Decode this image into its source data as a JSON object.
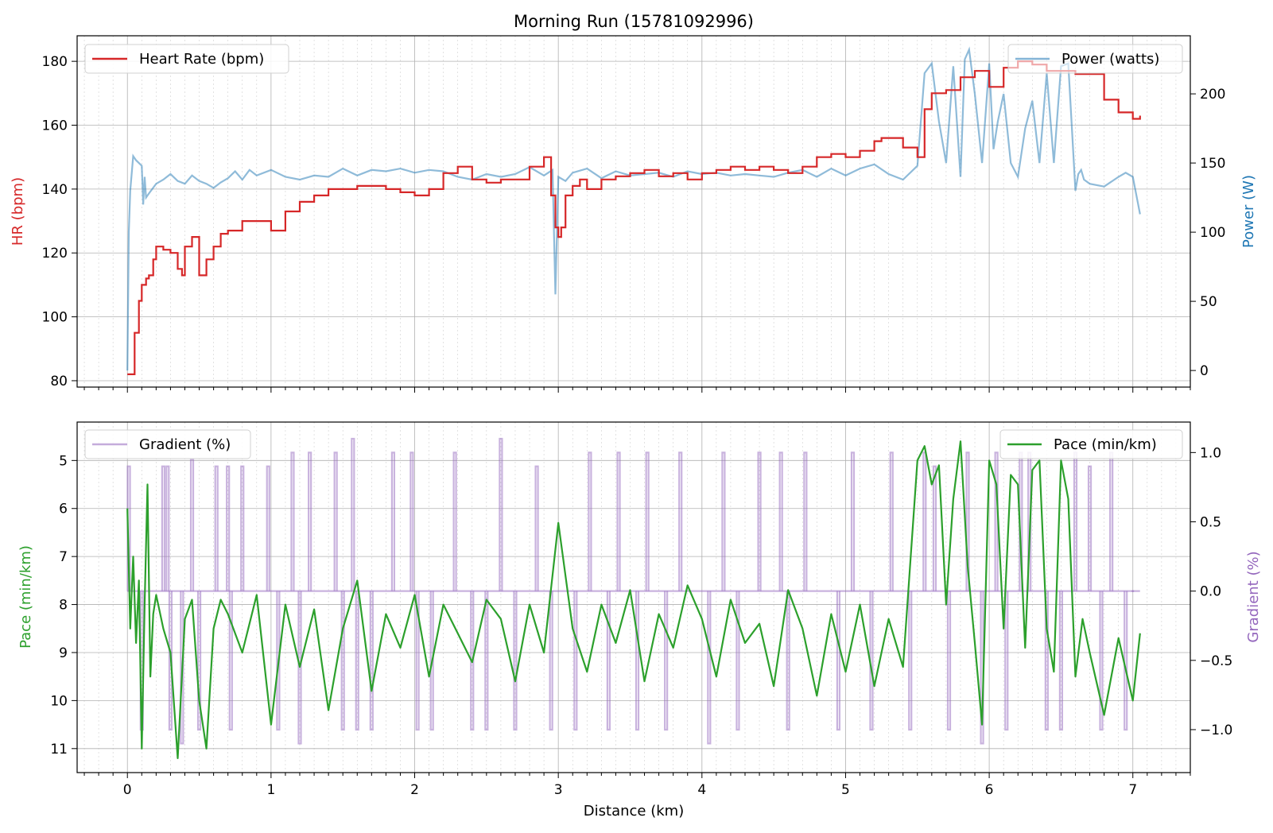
{
  "title": "Morning Run (15781092996)",
  "colors": {
    "hr": "#d62728",
    "power": "#1f77b4",
    "pace": "#2ca02c",
    "gradient": "#9467bd",
    "grid": "#b0b0b0"
  },
  "chart_data": [
    {
      "type": "line",
      "panel": "top",
      "xlabel": "Distance (km)",
      "xlim": [
        -0.35,
        7.4
      ],
      "xticks": [
        0,
        1,
        2,
        3,
        4,
        5,
        6,
        7
      ],
      "ylabel_left": "HR (bpm)",
      "ylim_left": [
        78,
        188
      ],
      "yticks_left": [
        80,
        100,
        120,
        140,
        160,
        180
      ],
      "ylabel_right": "Power (W)",
      "ylim_right": [
        -12,
        242
      ],
      "yticks_right": [
        0,
        50,
        100,
        150,
        200
      ],
      "grid": true,
      "legend_left": {
        "placement": "top-left",
        "label": "Heart Rate (bpm)"
      },
      "legend_right": {
        "placement": "top-right",
        "label": "Power (watts)"
      },
      "series": [
        {
          "name": "Heart Rate (bpm)",
          "axis": "left",
          "x": [
            0,
            0.02,
            0.05,
            0.08,
            0.1,
            0.13,
            0.15,
            0.18,
            0.2,
            0.25,
            0.3,
            0.35,
            0.38,
            0.4,
            0.45,
            0.5,
            0.55,
            0.6,
            0.65,
            0.7,
            0.8,
            0.9,
            1.0,
            1.1,
            1.2,
            1.3,
            1.4,
            1.5,
            1.6,
            1.7,
            1.8,
            1.9,
            2.0,
            2.1,
            2.2,
            2.3,
            2.4,
            2.5,
            2.6,
            2.7,
            2.8,
            2.9,
            2.95,
            2.98,
            3.0,
            3.02,
            3.05,
            3.1,
            3.15,
            3.2,
            3.3,
            3.4,
            3.5,
            3.6,
            3.7,
            3.8,
            3.9,
            4.0,
            4.1,
            4.2,
            4.3,
            4.4,
            4.5,
            4.6,
            4.7,
            4.8,
            4.9,
            5.0,
            5.1,
            5.2,
            5.25,
            5.3,
            5.4,
            5.5,
            5.55,
            5.6,
            5.7,
            5.8,
            5.9,
            6.0,
            6.1,
            6.2,
            6.3,
            6.4,
            6.5,
            6.6,
            6.7,
            6.8,
            6.9,
            7.0,
            7.05
          ],
          "values": [
            82,
            82,
            95,
            105,
            110,
            112,
            113,
            118,
            122,
            121,
            120,
            115,
            113,
            122,
            125,
            113,
            118,
            122,
            126,
            127,
            130,
            130,
            127,
            133,
            136,
            138,
            140,
            140,
            141,
            141,
            140,
            139,
            138,
            140,
            145,
            147,
            143,
            142,
            143,
            143,
            147,
            150,
            138,
            128,
            125,
            128,
            138,
            141,
            143,
            140,
            143,
            144,
            145,
            146,
            144,
            145,
            143,
            145,
            146,
            147,
            146,
            147,
            146,
            145,
            147,
            150,
            151,
            150,
            152,
            155,
            156,
            156,
            153,
            150,
            165,
            170,
            171,
            175,
            177,
            172,
            178,
            180,
            179,
            177,
            177,
            176,
            176,
            168,
            164,
            162,
            163
          ]
        },
        {
          "name": "Power (watts)",
          "axis": "right",
          "x": [
            0,
            0.01,
            0.02,
            0.04,
            0.06,
            0.08,
            0.1,
            0.11,
            0.12,
            0.13,
            0.15,
            0.2,
            0.25,
            0.3,
            0.35,
            0.4,
            0.45,
            0.5,
            0.55,
            0.6,
            0.65,
            0.7,
            0.75,
            0.8,
            0.85,
            0.9,
            1.0,
            1.1,
            1.2,
            1.3,
            1.4,
            1.5,
            1.6,
            1.7,
            1.8,
            1.9,
            2.0,
            2.1,
            2.2,
            2.3,
            2.4,
            2.5,
            2.6,
            2.7,
            2.8,
            2.9,
            2.96,
            2.98,
            3.0,
            3.05,
            3.1,
            3.2,
            3.3,
            3.4,
            3.5,
            3.6,
            3.7,
            3.8,
            3.9,
            4.0,
            4.1,
            4.2,
            4.3,
            4.4,
            4.5,
            4.6,
            4.7,
            4.8,
            4.9,
            5.0,
            5.1,
            5.2,
            5.3,
            5.4,
            5.5,
            5.55,
            5.6,
            5.65,
            5.7,
            5.75,
            5.8,
            5.83,
            5.86,
            5.9,
            5.95,
            6.0,
            6.03,
            6.06,
            6.1,
            6.15,
            6.2,
            6.25,
            6.3,
            6.35,
            6.4,
            6.45,
            6.5,
            6.55,
            6.6,
            6.62,
            6.64,
            6.66,
            6.7,
            6.8,
            6.9,
            6.95,
            7.0,
            7.05
          ],
          "values": [
            0,
            100,
            130,
            155,
            152,
            150,
            148,
            120,
            140,
            125,
            128,
            135,
            138,
            142,
            137,
            135,
            141,
            137,
            135,
            132,
            136,
            139,
            144,
            138,
            145,
            141,
            145,
            140,
            138,
            141,
            140,
            146,
            141,
            145,
            144,
            146,
            143,
            145,
            144,
            140,
            138,
            142,
            140,
            142,
            147,
            141,
            145,
            55,
            140,
            137,
            143,
            146,
            139,
            144,
            141,
            142,
            143,
            140,
            144,
            142,
            143,
            141,
            142,
            141,
            140,
            143,
            145,
            140,
            146,
            141,
            146,
            149,
            142,
            138,
            148,
            215,
            222,
            180,
            150,
            220,
            140,
            225,
            232,
            200,
            150,
            222,
            160,
            180,
            200,
            150,
            140,
            175,
            195,
            150,
            215,
            150,
            220,
            222,
            130,
            142,
            145,
            138,
            135,
            133,
            140,
            143,
            140,
            113
          ]
        }
      ]
    },
    {
      "type": "line",
      "panel": "bottom",
      "xlabel": "Distance (km)",
      "xlim": [
        -0.35,
        7.4
      ],
      "xticks": [
        0,
        1,
        2,
        3,
        4,
        5,
        6,
        7
      ],
      "ylabel_left": "Pace (min/km)",
      "ylim_left": [
        4.2,
        11.5
      ],
      "y_inverted": true,
      "yticks_left": [
        5,
        6,
        7,
        8,
        9,
        10,
        11
      ],
      "ylabel_right": "Gradient (%)",
      "ylim_right": [
        -1.31,
        1.22
      ],
      "yticks_right": [
        -1.0,
        -0.5,
        0.0,
        0.5,
        1.0
      ],
      "yticklabels_right": [
        "−1.0",
        "−0.5",
        "0.0",
        "0.5",
        "1.0"
      ],
      "grid": true,
      "legend_left": {
        "placement": "top-left",
        "label": "Gradient (%)"
      },
      "legend_right": {
        "placement": "top-right",
        "label": "Pace (min/km)"
      },
      "series": [
        {
          "name": "Gradient (%)",
          "axis": "right",
          "baseline": 0.0,
          "spikes": [
            {
              "x": 0.01,
              "v": 0.9
            },
            {
              "x": 0.1,
              "v": -1.0
            },
            {
              "x": 0.25,
              "v": 0.9
            },
            {
              "x": 0.28,
              "v": 0.9
            },
            {
              "x": 0.3,
              "v": -1.0
            },
            {
              "x": 0.38,
              "v": -1.1
            },
            {
              "x": 0.45,
              "v": 0.95
            },
            {
              "x": 0.5,
              "v": -1.0
            },
            {
              "x": 0.62,
              "v": 0.9
            },
            {
              "x": 0.7,
              "v": 0.9
            },
            {
              "x": 0.72,
              "v": -1.0
            },
            {
              "x": 0.8,
              "v": 0.9
            },
            {
              "x": 0.98,
              "v": 0.9
            },
            {
              "x": 1.05,
              "v": -1.0
            },
            {
              "x": 1.15,
              "v": 1.0
            },
            {
              "x": 1.2,
              "v": -1.1
            },
            {
              "x": 1.27,
              "v": 1.0
            },
            {
              "x": 1.45,
              "v": 1.0
            },
            {
              "x": 1.5,
              "v": -1.0
            },
            {
              "x": 1.57,
              "v": 1.1
            },
            {
              "x": 1.6,
              "v": -1.0
            },
            {
              "x": 1.7,
              "v": -1.0
            },
            {
              "x": 1.85,
              "v": 1.0
            },
            {
              "x": 1.98,
              "v": 1.0
            },
            {
              "x": 2.02,
              "v": -1.0
            },
            {
              "x": 2.12,
              "v": -1.0
            },
            {
              "x": 2.28,
              "v": 1.0
            },
            {
              "x": 2.4,
              "v": -1.0
            },
            {
              "x": 2.5,
              "v": -1.0
            },
            {
              "x": 2.6,
              "v": 1.1
            },
            {
              "x": 2.7,
              "v": -1.0
            },
            {
              "x": 2.85,
              "v": 0.9
            },
            {
              "x": 2.95,
              "v": -1.0
            },
            {
              "x": 3.12,
              "v": -1.0
            },
            {
              "x": 3.22,
              "v": 1.0
            },
            {
              "x": 3.35,
              "v": -1.0
            },
            {
              "x": 3.42,
              "v": 1.0
            },
            {
              "x": 3.55,
              "v": -1.0
            },
            {
              "x": 3.62,
              "v": 1.0
            },
            {
              "x": 3.75,
              "v": -1.0
            },
            {
              "x": 3.85,
              "v": 1.0
            },
            {
              "x": 4.05,
              "v": -1.1
            },
            {
              "x": 4.15,
              "v": 1.0
            },
            {
              "x": 4.25,
              "v": -1.0
            },
            {
              "x": 4.4,
              "v": 1.0
            },
            {
              "x": 4.55,
              "v": 1.0
            },
            {
              "x": 4.6,
              "v": -1.0
            },
            {
              "x": 4.72,
              "v": 1.0
            },
            {
              "x": 4.95,
              "v": -1.0
            },
            {
              "x": 5.05,
              "v": 1.0
            },
            {
              "x": 5.18,
              "v": -1.0
            },
            {
              "x": 5.32,
              "v": 1.0
            },
            {
              "x": 5.45,
              "v": -1.0
            },
            {
              "x": 5.55,
              "v": 1.0
            },
            {
              "x": 5.62,
              "v": 0.9
            },
            {
              "x": 5.72,
              "v": -1.0
            },
            {
              "x": 5.85,
              "v": 1.0
            },
            {
              "x": 5.95,
              "v": -1.1
            },
            {
              "x": 6.05,
              "v": 1.0
            },
            {
              "x": 6.12,
              "v": -1.0
            },
            {
              "x": 6.22,
              "v": 1.0
            },
            {
              "x": 6.28,
              "v": 1.0
            },
            {
              "x": 6.4,
              "v": -1.0
            },
            {
              "x": 6.5,
              "v": -1.0
            },
            {
              "x": 6.6,
              "v": 1.0
            },
            {
              "x": 6.7,
              "v": 0.9
            },
            {
              "x": 6.78,
              "v": -1.0
            },
            {
              "x": 6.85,
              "v": 1.0
            },
            {
              "x": 6.95,
              "v": -1.0
            },
            {
              "x": 7.0,
              "v": 0.0
            }
          ]
        },
        {
          "name": "Pace (min/km)",
          "axis": "left",
          "x": [
            0,
            0.02,
            0.04,
            0.06,
            0.08,
            0.1,
            0.12,
            0.14,
            0.16,
            0.18,
            0.2,
            0.25,
            0.3,
            0.35,
            0.4,
            0.45,
            0.5,
            0.55,
            0.6,
            0.65,
            0.7,
            0.8,
            0.9,
            1.0,
            1.1,
            1.2,
            1.3,
            1.4,
            1.5,
            1.6,
            1.7,
            1.8,
            1.9,
            2.0,
            2.1,
            2.2,
            2.3,
            2.4,
            2.5,
            2.6,
            2.7,
            2.8,
            2.9,
            3.0,
            3.1,
            3.2,
            3.3,
            3.4,
            3.5,
            3.6,
            3.7,
            3.8,
            3.9,
            4.0,
            4.1,
            4.2,
            4.3,
            4.4,
            4.5,
            4.6,
            4.7,
            4.8,
            4.9,
            5.0,
            5.1,
            5.2,
            5.3,
            5.4,
            5.5,
            5.55,
            5.6,
            5.65,
            5.7,
            5.75,
            5.8,
            5.85,
            5.9,
            5.95,
            6.0,
            6.05,
            6.1,
            6.15,
            6.2,
            6.25,
            6.3,
            6.35,
            6.4,
            6.45,
            6.5,
            6.55,
            6.6,
            6.65,
            6.7,
            6.8,
            6.9,
            7.0,
            7.05
          ],
          "values": [
            6.0,
            8.5,
            7.0,
            8.8,
            7.5,
            11.0,
            8.0,
            5.5,
            9.5,
            8.2,
            7.8,
            8.5,
            9.0,
            11.2,
            8.3,
            7.9,
            10.0,
            11.0,
            8.5,
            7.9,
            8.2,
            9.0,
            7.8,
            10.5,
            8.0,
            9.3,
            8.1,
            10.2,
            8.5,
            7.5,
            9.8,
            8.2,
            8.9,
            7.8,
            9.5,
            8.0,
            8.6,
            9.2,
            7.9,
            8.3,
            9.6,
            8.0,
            9.0,
            6.3,
            8.5,
            9.4,
            8.0,
            8.8,
            7.7,
            9.6,
            8.2,
            8.9,
            7.6,
            8.3,
            9.5,
            7.9,
            8.8,
            8.4,
            9.7,
            7.7,
            8.5,
            9.9,
            8.2,
            9.4,
            8.0,
            9.7,
            8.3,
            9.3,
            5.0,
            4.7,
            5.5,
            5.1,
            8.0,
            5.8,
            4.6,
            7.2,
            8.8,
            10.5,
            5.0,
            5.5,
            8.5,
            5.3,
            5.5,
            8.9,
            5.2,
            5.0,
            8.5,
            9.4,
            5.0,
            5.8,
            9.5,
            8.3,
            9.0,
            10.3,
            8.7,
            10.0,
            8.6
          ]
        }
      ]
    }
  ]
}
